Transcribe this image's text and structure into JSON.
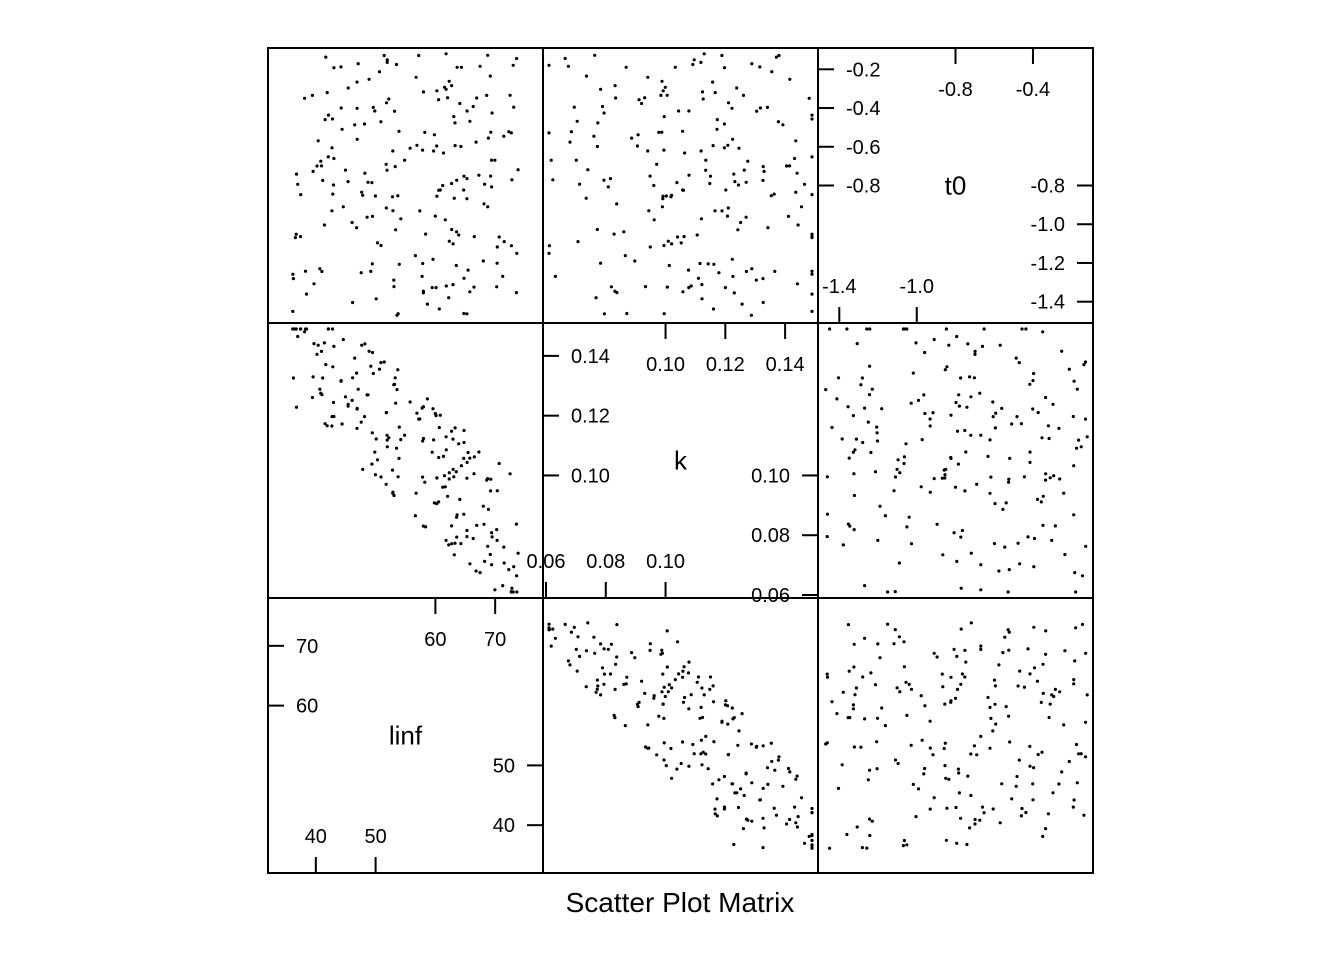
{
  "chart_data": {
    "type": "scatter",
    "title": "",
    "xlabel": "Scatter Plot Matrix",
    "ylabel": "",
    "grid": false,
    "variables": [
      {
        "name": "linf",
        "range": [
          32,
          78
        ],
        "diag_ticks": [
          {
            "value": 40,
            "label": "40",
            "side": "bottom"
          },
          {
            "value": 50,
            "label": "50",
            "side": "bottom"
          },
          {
            "value": 60,
            "label": "60",
            "side": "left"
          },
          {
            "value": 70,
            "label": "70",
            "side": "left"
          },
          {
            "value": 60,
            "label": "60",
            "side": "top"
          },
          {
            "value": 70,
            "label": "70",
            "side": "top"
          },
          {
            "value": 40,
            "label": "40",
            "side": "right"
          },
          {
            "value": 50,
            "label": "50",
            "side": "right"
          }
        ]
      },
      {
        "name": "k",
        "range": [
          0.059,
          0.151
        ],
        "diag_ticks": [
          {
            "value": 0.06,
            "label": "0.06",
            "side": "bottom"
          },
          {
            "value": 0.08,
            "label": "0.08",
            "side": "bottom"
          },
          {
            "value": 0.1,
            "label": "0.10",
            "side": "bottom"
          },
          {
            "value": 0.1,
            "label": "0.10",
            "side": "left"
          },
          {
            "value": 0.12,
            "label": "0.12",
            "side": "left"
          },
          {
            "value": 0.14,
            "label": "0.14",
            "side": "left"
          },
          {
            "value": 0.1,
            "label": "0.10",
            "side": "top"
          },
          {
            "value": 0.12,
            "label": "0.12",
            "side": "top"
          },
          {
            "value": 0.14,
            "label": "0.14",
            "side": "top"
          },
          {
            "value": 0.06,
            "label": "0.06",
            "side": "right"
          },
          {
            "value": 0.08,
            "label": "0.08",
            "side": "right"
          },
          {
            "value": 0.1,
            "label": "0.10",
            "side": "right"
          }
        ]
      },
      {
        "name": "t0",
        "range": [
          -1.51,
          -0.09
        ],
        "diag_ticks": [
          {
            "value": -1.4,
            "label": "-1.4",
            "side": "bottom"
          },
          {
            "value": -1.0,
            "label": "-1.0",
            "side": "bottom"
          },
          {
            "value": -0.8,
            "label": "-0.8",
            "side": "left"
          },
          {
            "value": -0.6,
            "label": "-0.6",
            "side": "left"
          },
          {
            "value": -0.4,
            "label": "-0.4",
            "side": "left"
          },
          {
            "value": -0.2,
            "label": "-0.2",
            "side": "left"
          },
          {
            "value": -0.8,
            "label": "-0.8",
            "side": "top"
          },
          {
            "value": -0.4,
            "label": "-0.4",
            "side": "top"
          },
          {
            "value": -1.4,
            "label": "-1.4",
            "side": "right"
          },
          {
            "value": -1.2,
            "label": "-1.2",
            "side": "right"
          },
          {
            "value": -1.0,
            "label": "-1.0",
            "side": "right"
          },
          {
            "value": -0.8,
            "label": "-0.8",
            "side": "right"
          }
        ]
      }
    ],
    "n_points": 200,
    "approx_correlations": {
      "linf_k": -0.6,
      "linf_t0": -0.05,
      "k_t0": 0.05
    },
    "points_note": "individual points approximated"
  }
}
